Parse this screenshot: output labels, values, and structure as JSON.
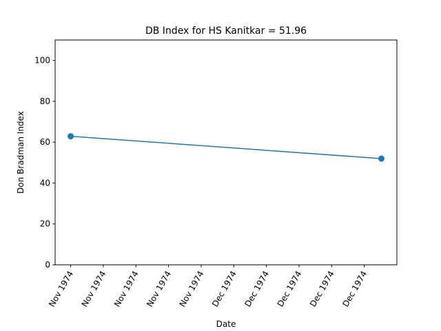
{
  "chart_data": {
    "type": "line",
    "title": "DB Index for HS Kanitkar = 51.96",
    "xlabel": "Date",
    "ylabel": "Don Bradman Index",
    "ylim": [
      0,
      110
    ],
    "yticks": [
      0,
      20,
      40,
      60,
      80,
      100
    ],
    "xlim": [
      -0.05,
      1.05
    ],
    "xticks": [
      {
        "pos": 0.0,
        "label": "Nov 1974"
      },
      {
        "pos": 0.105,
        "label": "Nov 1974"
      },
      {
        "pos": 0.21,
        "label": "Nov 1974"
      },
      {
        "pos": 0.315,
        "label": "Nov 1974"
      },
      {
        "pos": 0.42,
        "label": "Nov 1974"
      },
      {
        "pos": 0.525,
        "label": "Dec 1974"
      },
      {
        "pos": 0.63,
        "label": "Dec 1974"
      },
      {
        "pos": 0.735,
        "label": "Dec 1974"
      },
      {
        "pos": 0.84,
        "label": "Dec 1974"
      },
      {
        "pos": 0.945,
        "label": "Dec 1974"
      }
    ],
    "series": [
      {
        "color": "#1f77b4",
        "points": [
          {
            "x": 0.0,
            "y": 62.9
          },
          {
            "x": 1.0,
            "y": 51.96
          }
        ]
      }
    ],
    "grid": false,
    "legend": "none"
  }
}
